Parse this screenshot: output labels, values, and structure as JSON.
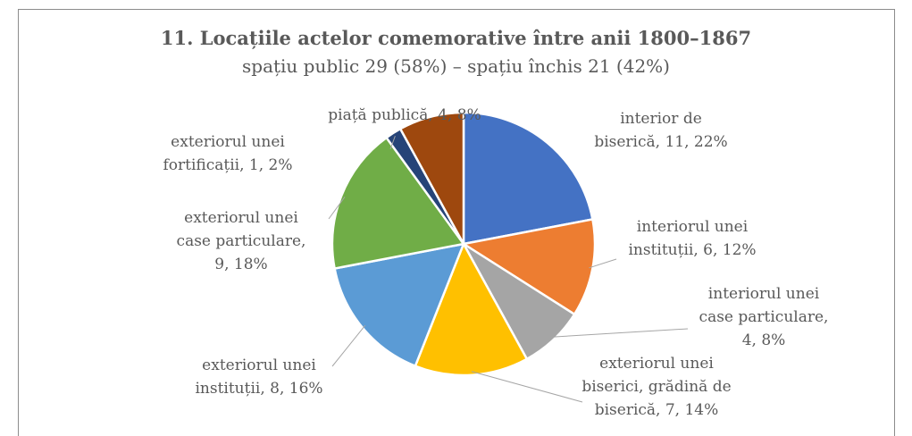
{
  "chart_data": {
    "type": "pie",
    "title": "11. Locațiile actelor comemorative între anii 1800–1867",
    "subtitle": "spațiu public 29 (58%) – spațiu închis 21 (42%)",
    "values": [
      11,
      6,
      4,
      7,
      8,
      9,
      1,
      4
    ],
    "value_labels": [
      "interior de\nbiserică, 11, 22%",
      "interiorul unei\ninstituții, 6, 12%",
      "interiorul unei\ncase particulare,\n4, 8%",
      "exteriorul unei\nbiserici, grădină de\nbiserică, 7, 14%",
      "exteriorul unei\ninstituții, 8, 16%",
      "exteriorul unei\ncase particulare,\n9, 18%",
      "exteriorul unei\nfortificații, 1, 2%",
      "piață publică, 4, 8%"
    ],
    "colors": [
      "#4472c4",
      "#ed7d31",
      "#a5a5a5",
      "#ffc000",
      "#5b9bd5",
      "#70ad47",
      "#264478",
      "#9e480e"
    ]
  }
}
